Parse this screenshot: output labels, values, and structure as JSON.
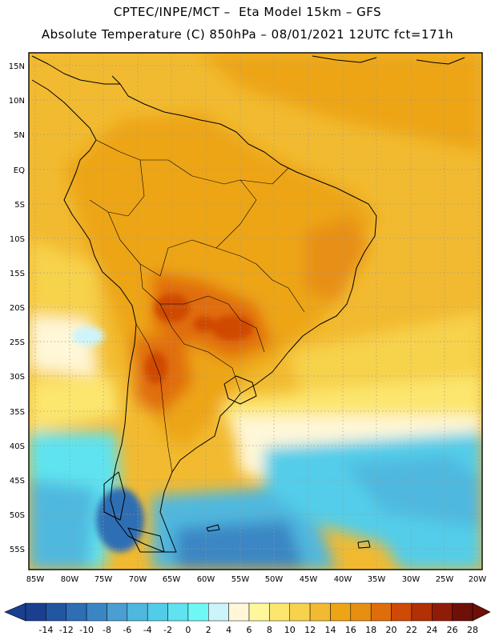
{
  "header": {
    "line1": "CPTEC/INPE/MCT –  Eta Model 15km – GFS",
    "line2": "Absolute Temperature (C) 850hPa – 08/01/2021 12UTC fct=171h"
  },
  "map": {
    "lat_labels": [
      "15N",
      "10N",
      "5N",
      "EQ",
      "5S",
      "10S",
      "15S",
      "20S",
      "25S",
      "30S",
      "35S",
      "40S",
      "45S",
      "50S",
      "55S"
    ],
    "lon_labels": [
      "85W",
      "80W",
      "75W",
      "70W",
      "65W",
      "60W",
      "55W",
      "50W",
      "45W",
      "40W",
      "35W",
      "30W",
      "25W",
      "20W"
    ]
  },
  "colorbar": {
    "colors": [
      "#1a3f8f",
      "#2356a1",
      "#2d6eb4",
      "#3a86c4",
      "#4a9ed2",
      "#4fb8df",
      "#52cde9",
      "#5fe3f0",
      "#6ff7f5",
      "#cdf4fb",
      "#fff7d8",
      "#fef79c",
      "#fce66e",
      "#f7d24c",
      "#f2ba30",
      "#eda516",
      "#e78f12",
      "#e06d0b",
      "#cf4a06",
      "#b13005",
      "#8f1c07",
      "#6e1008"
    ],
    "labels": [
      "-14",
      "-12",
      "-10",
      "-8",
      "-6",
      "-4",
      "-2",
      "0",
      "2",
      "4",
      "6",
      "8",
      "10",
      "12",
      "14",
      "16",
      "18",
      "20",
      "22",
      "24",
      "26",
      "28"
    ]
  }
}
